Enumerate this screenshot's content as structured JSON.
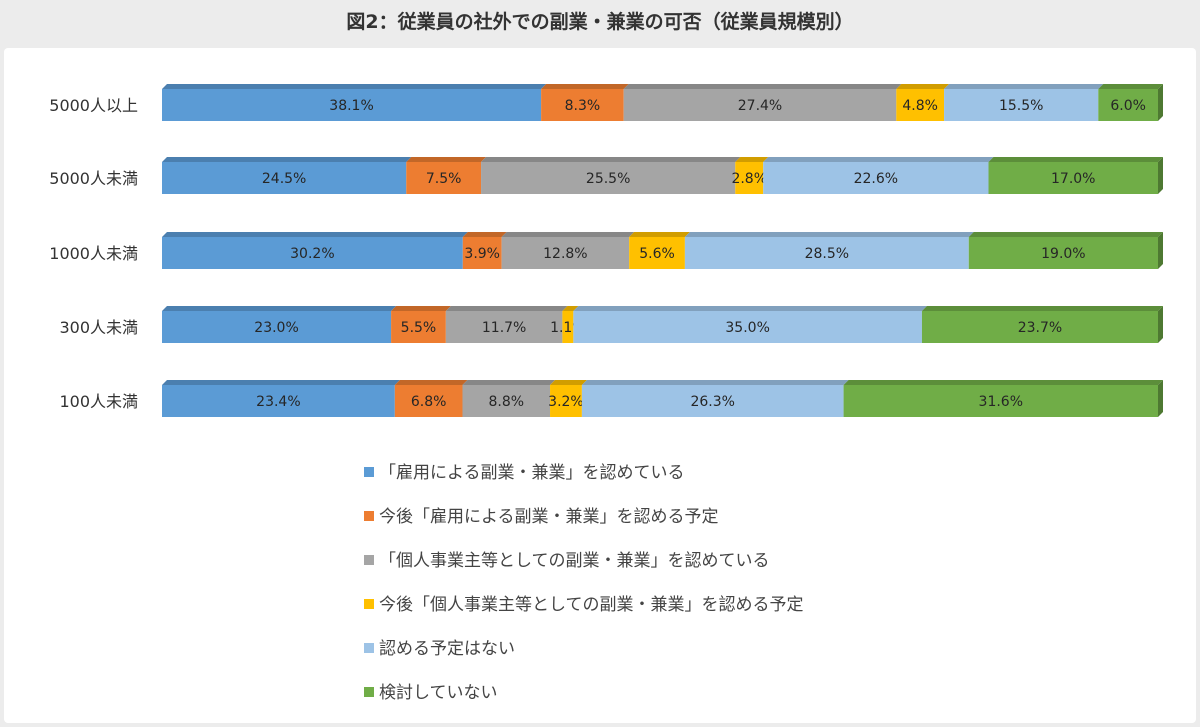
{
  "title": "図2：従業員の社外での副業・兼業の可否（従業員規模別）",
  "chart_data": {
    "type": "bar",
    "orientation": "horizontal",
    "stacked": "percent",
    "title": "図2：従業員の社外での副業・兼業の可否（従業員規模別）",
    "categories": [
      "5000人以上",
      "5000人未満",
      "1000人未満",
      "300人未満",
      "100人未満"
    ],
    "xlim": [
      0,
      100
    ],
    "legend_position": "bottom",
    "grid": false,
    "series": [
      {
        "name": "「雇用による副業・兼業」を認めている",
        "color": "#5b9bd5",
        "values": [
          38.1,
          24.5,
          30.2,
          23.0,
          23.4
        ]
      },
      {
        "name": "今後「雇用による副業・兼業」を認める予定",
        "color": "#ed7d31",
        "values": [
          8.3,
          7.5,
          3.9,
          5.5,
          6.8
        ]
      },
      {
        "name": "「個人事業主等としての副業・兼業」を認めている",
        "color": "#a5a5a5",
        "values": [
          27.4,
          25.5,
          12.8,
          11.7,
          8.8
        ]
      },
      {
        "name": "今後「個人事業主等としての副業・兼業」を認める予定",
        "color": "#ffc000",
        "values": [
          4.8,
          2.8,
          5.6,
          1.1,
          3.2
        ]
      },
      {
        "name": "認める予定はない",
        "color": "#9dc3e6",
        "values": [
          15.5,
          22.6,
          28.5,
          35.0,
          26.3
        ]
      },
      {
        "name": "検討していない",
        "color": "#70ad47",
        "values": [
          6.0,
          17.0,
          19.0,
          23.7,
          31.6
        ]
      }
    ],
    "value_labels": [
      [
        "38.1%",
        "24.5%",
        "30.2%",
        "23.0%",
        "23.4%"
      ],
      [
        "8.3%",
        "7.5%",
        "3.9%",
        "5.5%",
        "6.8%"
      ],
      [
        "27.4%",
        "25.5%",
        "12.8%",
        "11.7%",
        "8.8%"
      ],
      [
        "4.8%",
        "2.8%",
        "5.6%",
        "1.1%",
        "3.2%"
      ],
      [
        "15.5%",
        "22.6%",
        "28.5%",
        "35.0%",
        "26.3%"
      ],
      [
        "6.0%",
        "17.0%",
        "19.0%",
        "23.7%",
        "31.6%"
      ]
    ]
  }
}
